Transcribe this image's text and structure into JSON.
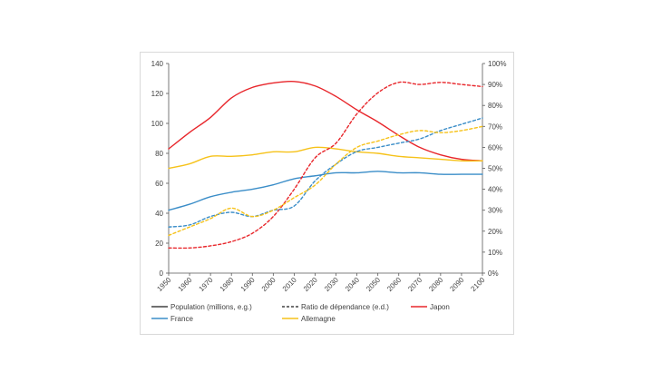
{
  "chart_data": {
    "type": "line",
    "title": "",
    "xlabel": "",
    "ylabel": "",
    "x": [
      1950,
      1960,
      1970,
      1980,
      1990,
      2000,
      2010,
      2020,
      2030,
      2040,
      2050,
      2060,
      2070,
      2080,
      2090,
      2100
    ],
    "xticks": [
      "1950",
      "1960",
      "1970",
      "1980",
      "1990",
      "2000",
      "2010",
      "2020",
      "2030",
      "2040",
      "2050",
      "2060",
      "2070",
      "2080",
      "2090",
      "2100"
    ],
    "ylim_left": [
      0,
      140
    ],
    "yticks_left": [
      "0",
      "20",
      "40",
      "60",
      "80",
      "100",
      "120",
      "140"
    ],
    "ylim_right": [
      0,
      100
    ],
    "yticks_right": [
      "0%",
      "10%",
      "20%",
      "30%",
      "40%",
      "50%",
      "60%",
      "70%",
      "80%",
      "90%",
      "100%"
    ],
    "series": [
      {
        "name": "Japon - Population",
        "country": "Japon",
        "kind": "population",
        "axis": "left",
        "color": "#e8262b",
        "dashed": false,
        "values": [
          83,
          94,
          104,
          117,
          124,
          127,
          128,
          125,
          118,
          109,
          101,
          92,
          84,
          79,
          76,
          75
        ]
      },
      {
        "name": "France - Population",
        "country": "France",
        "kind": "population",
        "axis": "left",
        "color": "#3a8dc8",
        "dashed": false,
        "values": [
          42,
          46,
          51,
          54,
          56,
          59,
          63,
          65,
          67,
          67,
          68,
          67,
          67,
          66,
          66,
          66
        ]
      },
      {
        "name": "Allemagne - Population",
        "country": "Allemagne",
        "kind": "population",
        "axis": "left",
        "color": "#f6c21a",
        "dashed": false,
        "values": [
          70,
          73,
          78,
          78,
          79,
          81,
          81,
          84,
          83,
          81,
          80,
          78,
          77,
          76,
          75,
          75
        ]
      },
      {
        "name": "Japon - Ratio de dépendance",
        "country": "Japon",
        "kind": "ratio",
        "axis": "right",
        "color": "#e8262b",
        "dashed": true,
        "values": [
          12,
          12,
          13,
          15,
          19,
          27,
          40,
          55,
          62,
          76,
          86,
          91,
          90,
          91,
          90,
          89
        ]
      },
      {
        "name": "France - Ratio de dépendance",
        "country": "France",
        "kind": "ratio",
        "axis": "right",
        "color": "#3a8dc8",
        "dashed": true,
        "values": [
          22,
          23,
          27,
          29,
          27,
          30,
          32,
          44,
          52,
          58,
          60,
          62,
          64,
          68,
          71,
          74
        ]
      },
      {
        "name": "Allemagne - Ratio de dépendance",
        "country": "Allemagne",
        "kind": "ratio",
        "axis": "right",
        "color": "#f6c21a",
        "dashed": true,
        "values": [
          18,
          22,
          26,
          31,
          27,
          30,
          36,
          42,
          52,
          60,
          63,
          66,
          68,
          67,
          68,
          70
        ]
      }
    ],
    "legend": [
      {
        "label": "Population (millions, e.g.)",
        "color": "#404040",
        "dashed": false
      },
      {
        "label": "Ratio de dépendance (e.d.)",
        "color": "#404040",
        "dashed": true
      },
      {
        "label": "Japon",
        "color": "#e8262b",
        "dashed": false
      },
      {
        "label": "France",
        "color": "#3a8dc8",
        "dashed": false
      },
      {
        "label": "Allemagne",
        "color": "#f6c21a",
        "dashed": false
      }
    ],
    "legend_position": "bottom",
    "grid": false
  }
}
